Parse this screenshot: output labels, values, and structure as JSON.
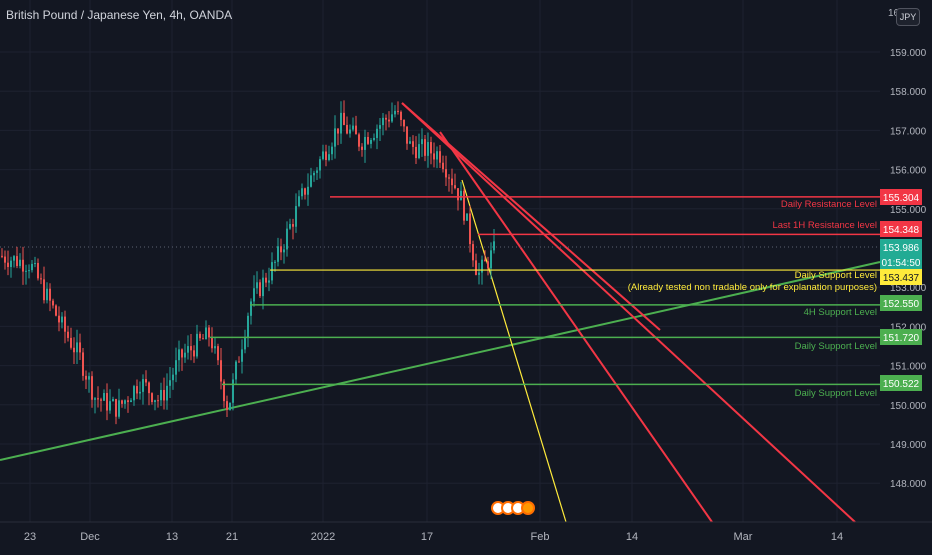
{
  "header": {
    "title": "British Pound / Japanese Yen, 4h, OANDA",
    "currency_label": "JPY",
    "top_price_partial": "16"
  },
  "countdown": "01:54:50",
  "price_axis": {
    "ticks": [
      "159.000",
      "158.000",
      "157.000",
      "156.000",
      "155.000",
      "153.000",
      "152.000",
      "151.000",
      "150.000",
      "149.000",
      "148.000"
    ]
  },
  "price_tags": [
    {
      "label": "155.304",
      "color": "#f23645",
      "text_color": "#ffffff"
    },
    {
      "label": "154.348",
      "color": "#f23645",
      "text_color": "#ffffff"
    },
    {
      "label": "153.986",
      "color": "#22ab94",
      "text_color": "#ffffff"
    },
    {
      "label": "153.437",
      "color": "#ffeb3b",
      "text_color": "#131722"
    },
    {
      "label": "152.550",
      "color": "#4caf50",
      "text_color": "#ffffff"
    },
    {
      "label": "151.720",
      "color": "#4caf50",
      "text_color": "#ffffff"
    },
    {
      "label": "150.522",
      "color": "#4caf50",
      "text_color": "#ffffff"
    }
  ],
  "level_labels": [
    {
      "text": "Daily Resistance Level",
      "color": "#f23645"
    },
    {
      "text": "Last 1H Resistance level",
      "color": "#f23645"
    },
    {
      "text": "Daily Support Level",
      "color": "#ffeb3b"
    },
    {
      "text": "(Already tested non tradable only for explanation purposes)",
      "color": "#ffeb3b"
    },
    {
      "text": "4H Support Level",
      "color": "#4caf50"
    },
    {
      "text": "Daily Support Level",
      "color": "#4caf50"
    },
    {
      "text": "Daily Support Level",
      "color": "#4caf50"
    }
  ],
  "time_axis": {
    "ticks": [
      "23",
      "Dec",
      "13",
      "21",
      "2022",
      "17",
      "Feb",
      "14",
      "Mar",
      "14"
    ]
  },
  "colors": {
    "background": "#131722",
    "up_candle": "#26a69a",
    "down_candle": "#ef5350",
    "resistance": "#f23645",
    "support": "#4caf50",
    "yellow": "#ffeb3b"
  },
  "chart_data": {
    "type": "candlestick",
    "title": "British Pound / Japanese Yen, 4h, OANDA",
    "y_unit": "JPY",
    "ylim": [
      147.3,
      160.0
    ],
    "current_price": 153.986,
    "countdown": "01:54:50",
    "approx_close_path": [
      {
        "x": "Nov 18",
        "y": 153.8
      },
      {
        "x": "Nov 23",
        "y": 153.6
      },
      {
        "x": "Nov 26",
        "y": 152.0
      },
      {
        "x": "Nov 30",
        "y": 151.2
      },
      {
        "x": "Dec 2",
        "y": 150.2
      },
      {
        "x": "Dec 6",
        "y": 149.9
      },
      {
        "x": "Dec 10",
        "y": 150.6
      },
      {
        "x": "Dec 13",
        "y": 150.1
      },
      {
        "x": "Dec 16",
        "y": 151.2
      },
      {
        "x": "Dec 17",
        "y": 151.8
      },
      {
        "x": "Dec 20",
        "y": 149.9
      },
      {
        "x": "Dec 23",
        "y": 152.6
      },
      {
        "x": "Dec 28",
        "y": 153.6
      },
      {
        "x": "Dec 31",
        "y": 155.5
      },
      {
        "x": "Jan 4",
        "y": 157.2
      },
      {
        "x": "Jan 7",
        "y": 156.7
      },
      {
        "x": "Jan 12",
        "y": 157.5
      },
      {
        "x": "Jan 14",
        "y": 156.6
      },
      {
        "x": "Jan 19",
        "y": 156.4
      },
      {
        "x": "Jan 21",
        "y": 155.2
      },
      {
        "x": "Jan 24",
        "y": 153.3
      },
      {
        "x": "Jan 26",
        "y": 153.99
      }
    ],
    "horizontal_levels": [
      {
        "name": "Daily Resistance Level",
        "value": 155.304
      },
      {
        "name": "Last 1H Resistance level",
        "value": 154.348
      },
      {
        "name": "Daily Support Level",
        "value": 153.437
      },
      {
        "name": "4H Support Level",
        "value": 152.55
      },
      {
        "name": "Daily Support Level",
        "value": 151.72
      },
      {
        "name": "Daily Support Level",
        "value": 150.522
      }
    ],
    "x_ticks": [
      "23",
      "Dec",
      "13",
      "21",
      "2022",
      "17",
      "Feb",
      "14",
      "Mar",
      "14"
    ],
    "y_ticks": [
      159,
      158,
      157,
      156,
      155,
      153,
      152,
      151,
      150,
      149,
      148
    ]
  }
}
